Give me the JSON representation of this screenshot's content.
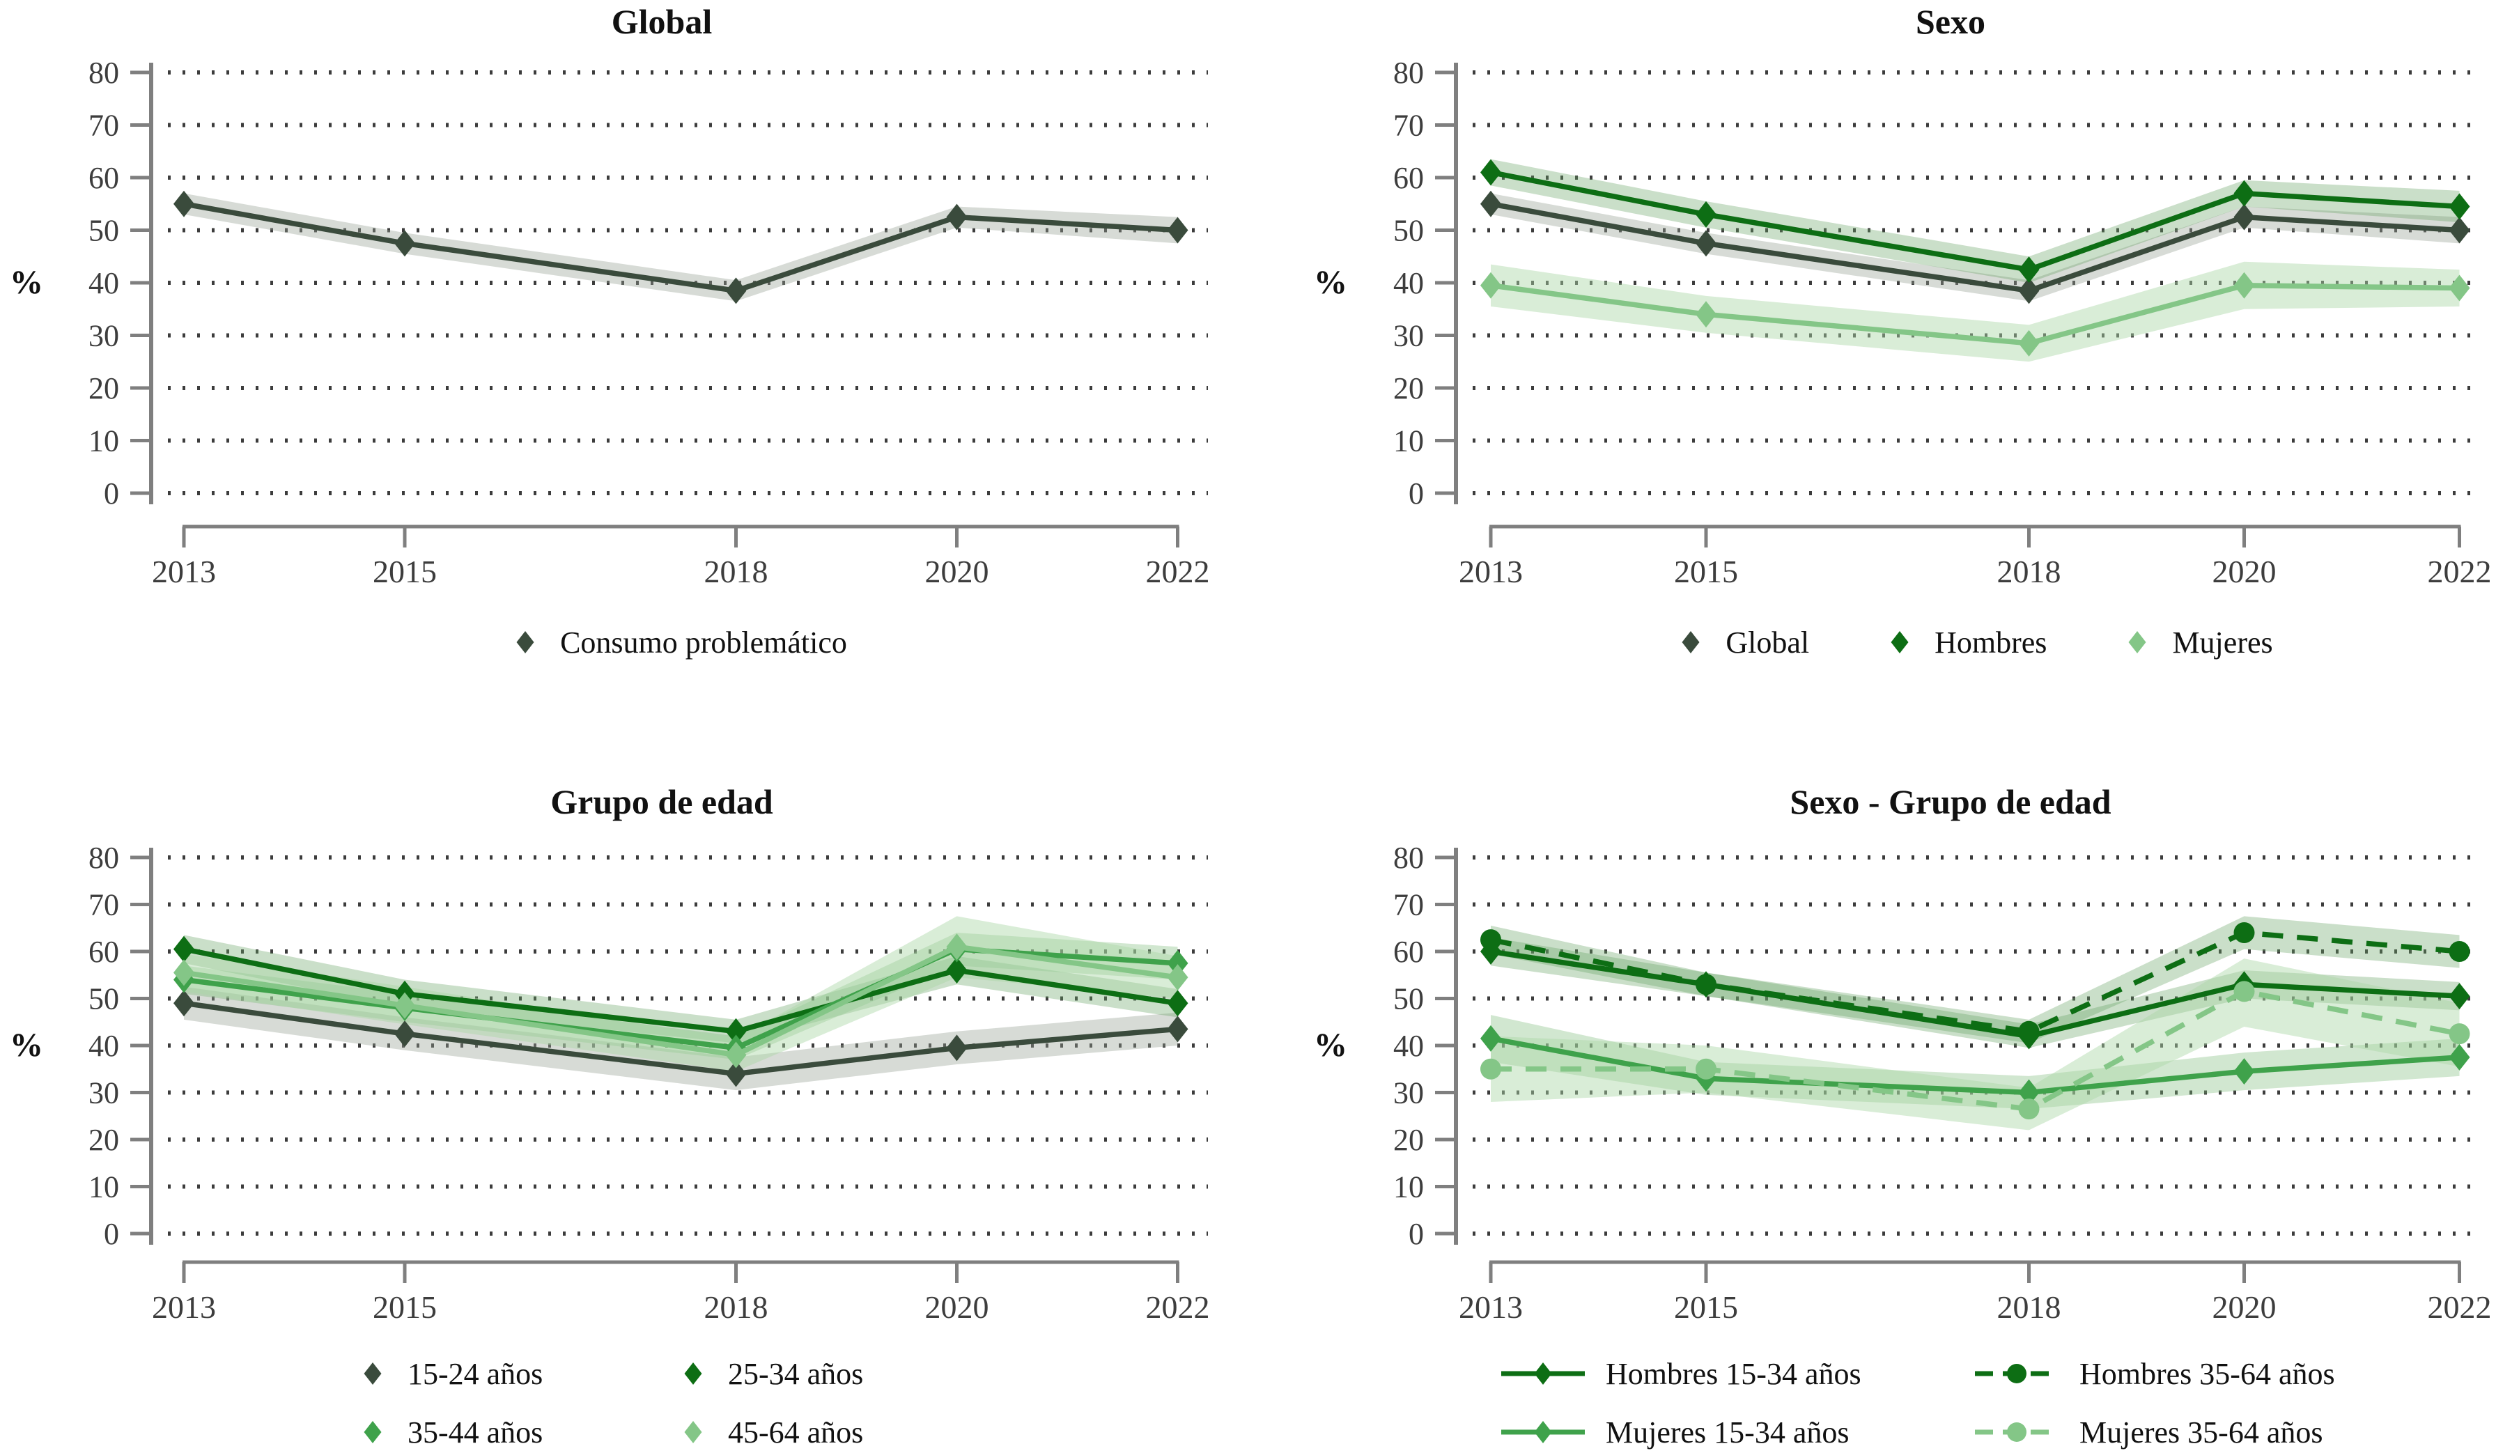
{
  "figure": {
    "background": "#ffffff",
    "font_note": "serif statistical figure, 2x2 panel grid of line charts with confidence bands"
  },
  "colors": {
    "darkGray": "#3a4b3c",
    "darkGreen": "#0d6e14",
    "medGreen": "#3fa24b",
    "lightGreen": "#84c687",
    "axis": "#7f7f7f",
    "tick_text": "#3d3d3d",
    "title_text": "#111111",
    "grid_dot": "#3c3c3c"
  },
  "chart_data": [
    {
      "type": "line",
      "title": "Global",
      "ylabel": "%",
      "x": [
        2013,
        2015,
        2018,
        2020,
        2022
      ],
      "x_ticklabels": [
        "2013",
        "2015",
        "2018",
        "2020",
        "2022"
      ],
      "y_ticks": [
        0,
        10,
        20,
        30,
        40,
        50,
        60,
        70,
        80
      ],
      "ylim": [
        0,
        80
      ],
      "grid": "dotted-horizontal",
      "legend_position": "bottom",
      "legend_columns": 1,
      "series": [
        {
          "name": "Consumo problemático",
          "color": "darkGray",
          "marker": "diamond",
          "line_style": "solid",
          "values": [
            55,
            47.5,
            38.5,
            52.5,
            50
          ],
          "ci_low": [
            53,
            45.5,
            36.5,
            50.5,
            47.5
          ],
          "ci_high": [
            57,
            49.5,
            40.5,
            54.5,
            52.5
          ]
        }
      ]
    },
    {
      "type": "line",
      "title": "Sexo",
      "ylabel": "%",
      "x": [
        2013,
        2015,
        2018,
        2020,
        2022
      ],
      "x_ticklabels": [
        "2013",
        "2015",
        "2018",
        "2020",
        "2022"
      ],
      "y_ticks": [
        0,
        10,
        20,
        30,
        40,
        50,
        60,
        70,
        80
      ],
      "ylim": [
        0,
        80
      ],
      "grid": "dotted-horizontal",
      "legend_position": "bottom",
      "legend_columns": 3,
      "series": [
        {
          "name": "Global",
          "color": "darkGray",
          "marker": "diamond",
          "line_style": "solid",
          "values": [
            55,
            47.5,
            38.5,
            52.5,
            50
          ],
          "ci_low": [
            53,
            45.5,
            36.5,
            50.5,
            47.5
          ],
          "ci_high": [
            57,
            49.5,
            40.5,
            54.5,
            52.5
          ]
        },
        {
          "name": "Hombres",
          "color": "darkGreen",
          "marker": "diamond",
          "line_style": "solid",
          "values": [
            61,
            53,
            42.5,
            57,
            54.5
          ],
          "ci_low": [
            58.5,
            50.5,
            40,
            54.5,
            51.5
          ],
          "ci_high": [
            63.5,
            55.5,
            45,
            59.5,
            57.5
          ]
        },
        {
          "name": "Mujeres",
          "color": "lightGreen",
          "marker": "diamond",
          "line_style": "solid",
          "values": [
            39.5,
            34,
            28.5,
            39.5,
            39
          ],
          "ci_low": [
            35.5,
            30.5,
            25,
            35,
            35.5
          ],
          "ci_high": [
            43.5,
            37.5,
            32,
            44,
            42.5
          ]
        }
      ]
    },
    {
      "type": "line",
      "title": "Grupo de edad",
      "ylabel": "%",
      "x": [
        2013,
        2015,
        2018,
        2020,
        2022
      ],
      "x_ticklabels": [
        "2013",
        "2015",
        "2018",
        "2020",
        "2022"
      ],
      "y_ticks": [
        0,
        10,
        20,
        30,
        40,
        50,
        60,
        70,
        80
      ],
      "ylim": [
        0,
        80
      ],
      "grid": "dotted-horizontal",
      "legend_position": "bottom",
      "legend_columns": 2,
      "series": [
        {
          "name": "15-24 años",
          "color": "darkGray",
          "marker": "diamond",
          "line_style": "solid",
          "values": [
            49,
            42.5,
            34,
            39.5,
            43.5
          ],
          "ci_low": [
            45.5,
            39,
            30.5,
            36,
            40
          ],
          "ci_high": [
            52.5,
            46,
            37.5,
            43,
            47
          ]
        },
        {
          "name": "25-34 años",
          "color": "darkGreen",
          "marker": "diamond",
          "line_style": "solid",
          "values": [
            60.5,
            51,
            43,
            56,
            49
          ],
          "ci_low": [
            57.5,
            48,
            40.5,
            53,
            46
          ],
          "ci_high": [
            63.5,
            54,
            45.5,
            59,
            52
          ]
        },
        {
          "name": "35-44 años",
          "color": "medGreen",
          "marker": "diamond",
          "line_style": "solid",
          "values": [
            54,
            48,
            39.5,
            60.5,
            57.5
          ],
          "ci_low": [
            51,
            45,
            37,
            57,
            54
          ],
          "ci_high": [
            57,
            51,
            42,
            64,
            61
          ]
        },
        {
          "name": "45-64 años",
          "color": "lightGreen",
          "marker": "diamond",
          "line_style": "solid",
          "values": [
            55.5,
            48.5,
            38,
            61,
            54.5
          ],
          "ci_low": [
            51.5,
            44.5,
            34.5,
            54.5,
            50
          ],
          "ci_high": [
            59.5,
            52.5,
            41.5,
            67.5,
            59
          ]
        }
      ]
    },
    {
      "type": "line",
      "title": "Sexo - Grupo de edad",
      "ylabel": "%",
      "x": [
        2013,
        2015,
        2018,
        2020,
        2022
      ],
      "x_ticklabels": [
        "2013",
        "2015",
        "2018",
        "2020",
        "2022"
      ],
      "y_ticks": [
        0,
        10,
        20,
        30,
        40,
        50,
        60,
        70,
        80
      ],
      "ylim": [
        0,
        80
      ],
      "grid": "dotted-horizontal",
      "legend_position": "bottom",
      "legend_columns": 2,
      "series": [
        {
          "name": "Hombres 15-34 años",
          "color": "darkGreen",
          "marker": "diamond",
          "line_style": "solid",
          "values": [
            60,
            53,
            42,
            53,
            50.5
          ],
          "ci_low": [
            57,
            50.5,
            39.5,
            50,
            47.5
          ],
          "ci_high": [
            63,
            55.5,
            44.5,
            56,
            53.5
          ]
        },
        {
          "name": "Hombres 35-64 años",
          "color": "darkGreen",
          "marker": "circle",
          "line_style": "dashed",
          "values": [
            62.5,
            53,
            43,
            64,
            60
          ],
          "ci_low": [
            59.5,
            50.5,
            40.5,
            60.5,
            56.5
          ],
          "ci_high": [
            65.5,
            55.5,
            45.5,
            67.5,
            63.5
          ]
        },
        {
          "name": "Mujeres 15-34 años",
          "color": "medGreen",
          "marker": "diamond",
          "line_style": "solid",
          "values": [
            41.5,
            33,
            30,
            34.5,
            37.5
          ],
          "ci_low": [
            36.5,
            29.5,
            26.5,
            30.5,
            33.5
          ],
          "ci_high": [
            46.5,
            36.5,
            33.5,
            38.5,
            41.5
          ]
        },
        {
          "name": "Mujeres 35-64 años",
          "color": "lightGreen",
          "marker": "circle",
          "line_style": "dashed",
          "values": [
            35,
            35,
            26.5,
            51.5,
            42.5
          ],
          "ci_low": [
            28,
            30,
            22,
            44,
            35.5
          ],
          "ci_high": [
            42,
            40,
            31,
            58.5,
            49
          ]
        }
      ]
    }
  ]
}
